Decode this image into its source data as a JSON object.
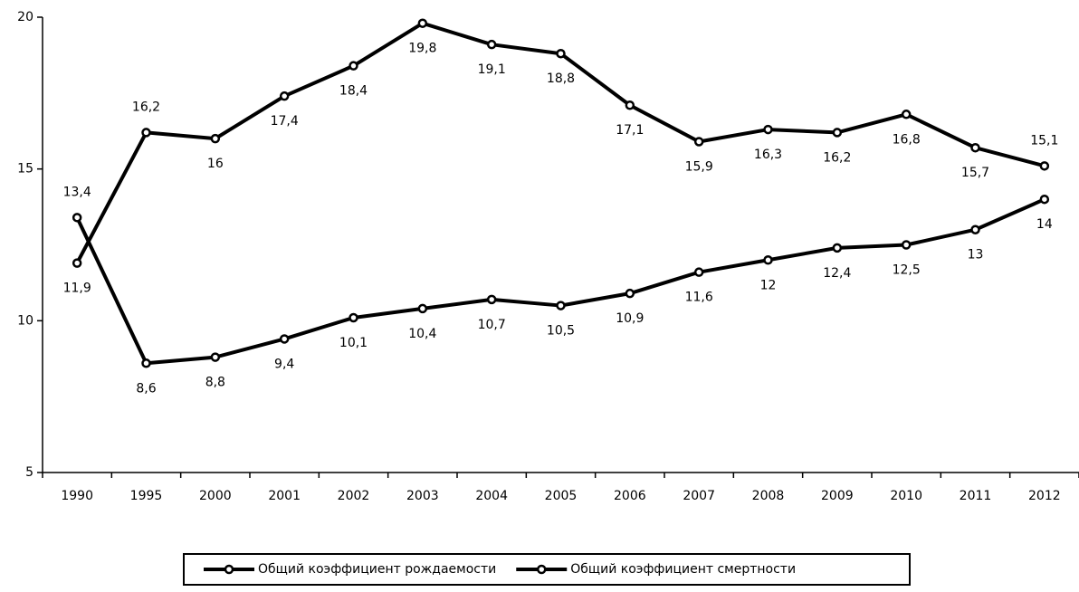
{
  "chart_data": {
    "type": "line",
    "categories": [
      "1990",
      "1995",
      "2000",
      "2001",
      "2002",
      "2003",
      "2004",
      "2005",
      "2006",
      "2007",
      "2008",
      "2009",
      "2010",
      "2011",
      "2012"
    ],
    "series": [
      {
        "name": "Общий коэффициент рождаемости",
        "color": "#000000",
        "values": [
          11.9,
          16.2,
          16,
          17.4,
          18.4,
          19.8,
          19.1,
          18.8,
          17.1,
          15.9,
          16.3,
          16.2,
          16.8,
          15.7,
          15.1
        ],
        "value_labels": [
          "11,9",
          "16,2",
          "16",
          "17,4",
          "18,4",
          "19,8",
          "19,1",
          "18,8",
          "17,1",
          "15,9",
          "16,3",
          "16,2",
          "16,8",
          "15,7",
          "15,1"
        ]
      },
      {
        "name": "Общий коэффициент смертности",
        "color": "#000000",
        "values": [
          13.4,
          8.6,
          8.8,
          9.4,
          10.1,
          10.4,
          10.7,
          10.5,
          10.9,
          11.6,
          12,
          12.4,
          12.5,
          13,
          14
        ],
        "value_labels": [
          "13,4",
          "8,6",
          "8,8",
          "9,4",
          "10,1",
          "10,4",
          "10,7",
          "10,5",
          "10,9",
          "11,6",
          "12",
          "12,4",
          "12,5",
          "13",
          "14"
        ]
      }
    ],
    "ylim": [
      5,
      20
    ],
    "yticks": [
      5,
      10,
      15,
      20
    ],
    "grid": false,
    "legend": "bottom"
  }
}
